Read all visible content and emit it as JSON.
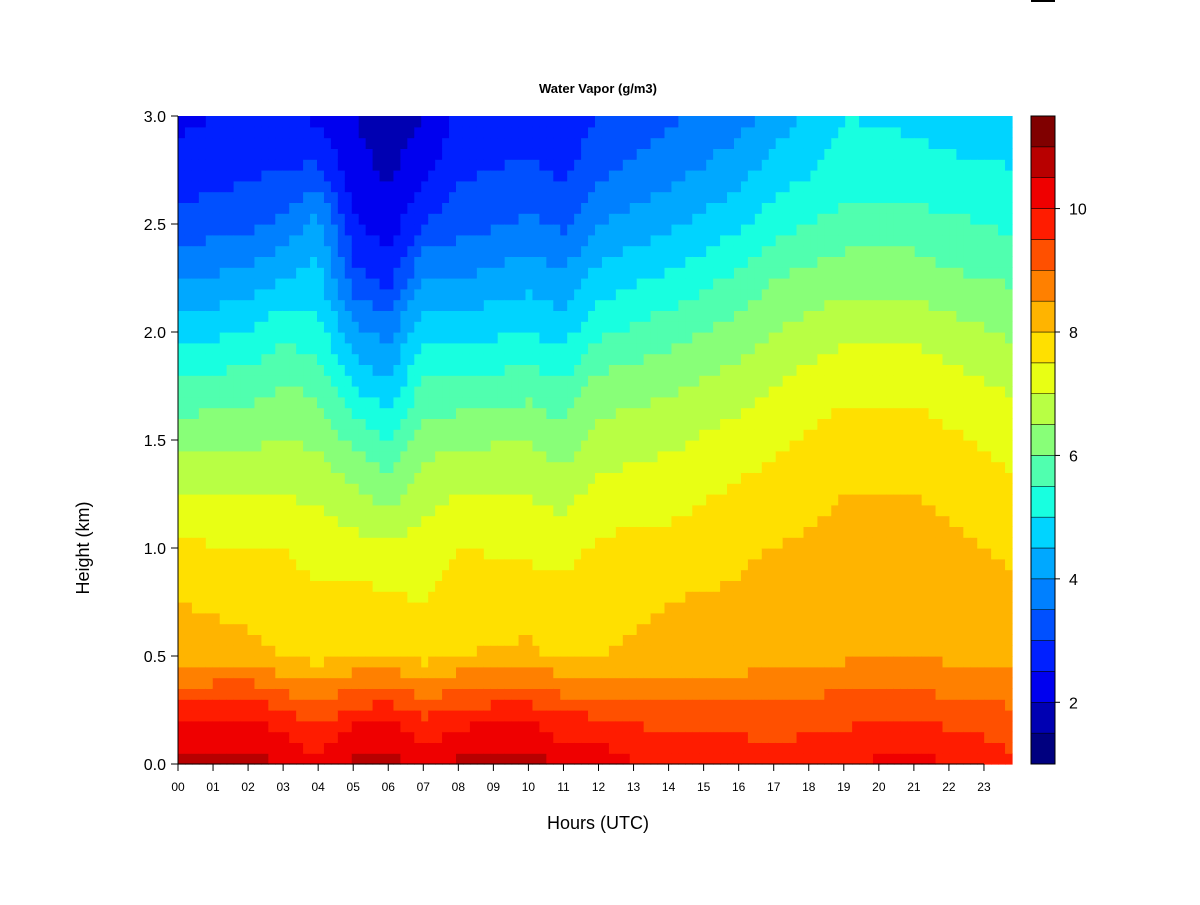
{
  "chart_data": {
    "type": "heatmap",
    "title": "Water Vapor (g/m3)",
    "xlabel": "Hours (UTC)",
    "ylabel": "Height (km)",
    "xlim": [
      0,
      24
    ],
    "ylim": [
      0,
      3
    ],
    "x_ticks": [
      "00",
      "01",
      "02",
      "03",
      "04",
      "05",
      "06",
      "07",
      "08",
      "09",
      "10",
      "11",
      "12",
      "13",
      "14",
      "15",
      "16",
      "17",
      "18",
      "19",
      "20",
      "21",
      "22",
      "23"
    ],
    "y_ticks": [
      "0.0",
      "0.5",
      "1.0",
      "1.5",
      "2.0",
      "2.5",
      "3.0"
    ],
    "colorbar": {
      "range": [
        1,
        11.5
      ],
      "ticks": [
        "2",
        "4",
        "6",
        "8",
        "10"
      ],
      "levels": [
        "#00007f",
        "#0000b2",
        "#0000ef",
        "#0020ff",
        "#0050ff",
        "#0080ff",
        "#00a8ff",
        "#00d4ff",
        "#18ffe0",
        "#50ffaf",
        "#88ff78",
        "#b8ff44",
        "#e8ff14",
        "#ffe000",
        "#ffb400",
        "#ff8000",
        "#ff5000",
        "#ff1c00",
        "#ef0000",
        "#b80000",
        "#800000"
      ]
    },
    "height_km": [
      0.0,
      0.1,
      0.2,
      0.3,
      0.4,
      0.5,
      0.75,
      1.0,
      1.25,
      1.5,
      1.75,
      2.0,
      2.25,
      2.5,
      2.75,
      3.0
    ],
    "profiles": [
      {
        "hour": 0,
        "values": [
          10.6,
          10.3,
          10.0,
          9.4,
          8.8,
          8.2,
          8.0,
          7.6,
          7.0,
          6.3,
          5.6,
          4.8,
          3.9,
          3.2,
          2.7,
          2.4
        ]
      },
      {
        "hour": 2,
        "values": [
          10.7,
          10.4,
          10.1,
          9.5,
          8.9,
          8.1,
          7.9,
          7.5,
          7.0,
          6.4,
          5.8,
          5.0,
          4.2,
          3.4,
          2.9,
          2.6
        ]
      },
      {
        "hour": 3,
        "values": [
          10.5,
          10.1,
          9.8,
          9.2,
          8.6,
          8.0,
          7.8,
          7.5,
          7.0,
          6.5,
          6.0,
          5.4,
          4.5,
          3.6,
          3.0,
          2.6
        ]
      },
      {
        "hour": 4,
        "values": [
          10.2,
          9.8,
          9.4,
          8.9,
          8.4,
          7.8,
          7.6,
          7.3,
          6.9,
          6.4,
          5.9,
          5.2,
          4.7,
          4.2,
          3.1,
          2.4
        ]
      },
      {
        "hour": 5,
        "values": [
          10.6,
          10.3,
          9.9,
          9.3,
          8.7,
          8.0,
          7.7,
          7.2,
          6.6,
          5.9,
          5.0,
          4.2,
          3.2,
          2.6,
          2.2,
          2.0
        ]
      },
      {
        "hour": 6,
        "values": [
          10.7,
          10.4,
          10.0,
          9.4,
          8.8,
          8.0,
          7.6,
          7.1,
          6.3,
          5.5,
          4.6,
          3.8,
          2.8,
          2.2,
          1.9,
          1.7
        ]
      },
      {
        "hour": 7,
        "values": [
          10.4,
          10.0,
          9.6,
          9.0,
          8.5,
          7.8,
          7.5,
          7.2,
          6.8,
          6.3,
          5.6,
          4.9,
          4.0,
          3.0,
          2.3,
          2.0
        ]
      },
      {
        "hour": 8,
        "values": [
          10.6,
          10.2,
          9.9,
          9.3,
          8.7,
          8.0,
          7.8,
          7.5,
          7.0,
          6.4,
          5.6,
          4.8,
          4.0,
          3.3,
          2.9,
          2.6
        ]
      },
      {
        "hour": 10,
        "values": [
          10.8,
          10.4,
          10.0,
          9.4,
          8.8,
          8.1,
          7.8,
          7.4,
          7.0,
          6.5,
          5.8,
          5.0,
          4.3,
          3.6,
          3.1,
          2.7
        ]
      },
      {
        "hour": 11,
        "values": [
          10.4,
          10.0,
          9.7,
          9.1,
          8.6,
          7.9,
          7.7,
          7.3,
          6.8,
          6.2,
          5.6,
          4.8,
          4.1,
          3.4,
          2.9,
          2.6
        ]
      },
      {
        "hour": 12,
        "values": [
          10.3,
          10.0,
          9.6,
          9.1,
          8.6,
          8.0,
          7.9,
          7.6,
          7.2,
          6.7,
          6.2,
          5.4,
          4.7,
          4.0,
          3.4,
          3.0
        ]
      },
      {
        "hour": 14,
        "values": [
          9.8,
          9.6,
          9.3,
          9.0,
          8.6,
          8.1,
          8.0,
          7.7,
          7.3,
          6.9,
          6.4,
          5.8,
          5.1,
          4.4,
          3.8,
          3.4
        ]
      },
      {
        "hour": 16,
        "values": [
          9.9,
          9.6,
          9.3,
          9.0,
          8.6,
          8.1,
          8.1,
          7.9,
          7.6,
          7.2,
          6.8,
          6.2,
          5.6,
          4.9,
          4.3,
          3.8
        ]
      },
      {
        "hour": 17,
        "values": [
          9.7,
          9.5,
          9.3,
          9.0,
          8.7,
          8.3,
          8.3,
          8.0,
          7.7,
          7.4,
          7.0,
          6.5,
          6.0,
          5.3,
          4.7,
          4.2
        ]
      },
      {
        "hour": 19,
        "values": [
          10.0,
          9.7,
          9.4,
          9.1,
          8.8,
          8.4,
          8.4,
          8.2,
          8.0,
          7.7,
          7.4,
          6.9,
          6.3,
          5.7,
          5.2,
          5.0
        ]
      },
      {
        "hour": 21,
        "values": [
          10.2,
          9.9,
          9.6,
          9.2,
          8.8,
          8.5,
          8.3,
          8.2,
          8.0,
          7.7,
          7.4,
          6.9,
          6.3,
          5.7,
          5.2,
          4.9
        ]
      },
      {
        "hour": 22,
        "values": [
          10.0,
          9.7,
          9.4,
          9.0,
          8.7,
          8.4,
          8.3,
          8.1,
          7.9,
          7.6,
          7.2,
          6.7,
          6.1,
          5.6,
          5.1,
          4.8
        ]
      },
      {
        "hour": 24,
        "values": [
          9.6,
          9.4,
          9.2,
          8.9,
          8.6,
          8.3,
          8.1,
          7.9,
          7.6,
          7.3,
          6.9,
          6.4,
          5.9,
          5.4,
          5.0,
          4.8
        ]
      }
    ],
    "grid": false,
    "legend": "colorbar-right"
  }
}
